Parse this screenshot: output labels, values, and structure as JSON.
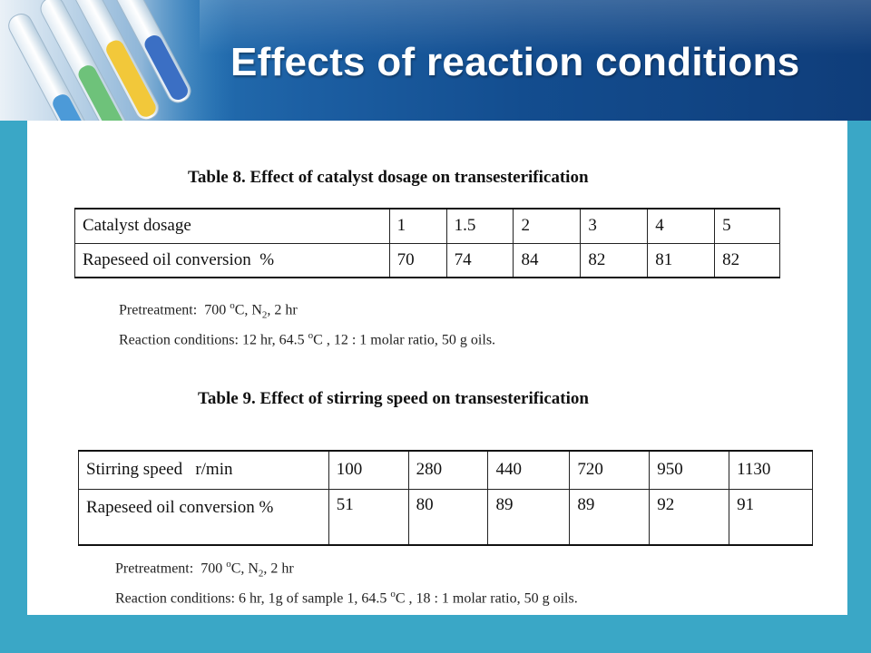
{
  "slide": {
    "title": "Effects of reaction conditions"
  },
  "table8": {
    "caption": "Table 8. Effect of catalyst dosage on transesterification",
    "rows": [
      [
        "Catalyst dosage",
        "1",
        "1.5",
        "2",
        "3",
        "4",
        "5"
      ],
      [
        "Rapeseed oil conversion  %",
        "70",
        "74",
        "84",
        "82",
        "81",
        "82"
      ]
    ],
    "note": {
      "pretreatment_prefix": "Pretreatment:  700 ",
      "pretreatment_deg": "o",
      "pretreatment_mid": "C, N",
      "pretreatment_sub": "2",
      "pretreatment_suffix": ", 2 hr",
      "reaction_prefix": "Reaction conditions: 12 hr, 64.5 ",
      "reaction_deg": "o",
      "reaction_suffix": "C , 12 : 1 molar ratio, 50 g oils."
    }
  },
  "table9": {
    "caption": "Table 9. Effect of stirring speed on transesterification",
    "rows": [
      [
        "Stirring speed   r/min",
        "100",
        "280",
        "440",
        "720",
        "950",
        "1130"
      ],
      [
        "Rapeseed oil conversion %",
        "51",
        "80",
        "89",
        "89",
        "92",
        "91"
      ]
    ],
    "note": {
      "pretreatment_prefix": "Pretreatment:  700 ",
      "pretreatment_deg": "o",
      "pretreatment_mid": "C, N",
      "pretreatment_sub": "2",
      "pretreatment_suffix": ", 2 hr",
      "reaction_prefix": "Reaction conditions: 6 hr, 1g of sample 1, 64.5 ",
      "reaction_deg": "o",
      "reaction_suffix": "C , 18 : 1 molar ratio, 50 g oils."
    }
  },
  "colors": {
    "frame": "#3aa7c6",
    "header_dark": "#0f3d7a",
    "header_light": "#2f86c4"
  },
  "icons": [
    "test-tubes-graphic"
  ]
}
